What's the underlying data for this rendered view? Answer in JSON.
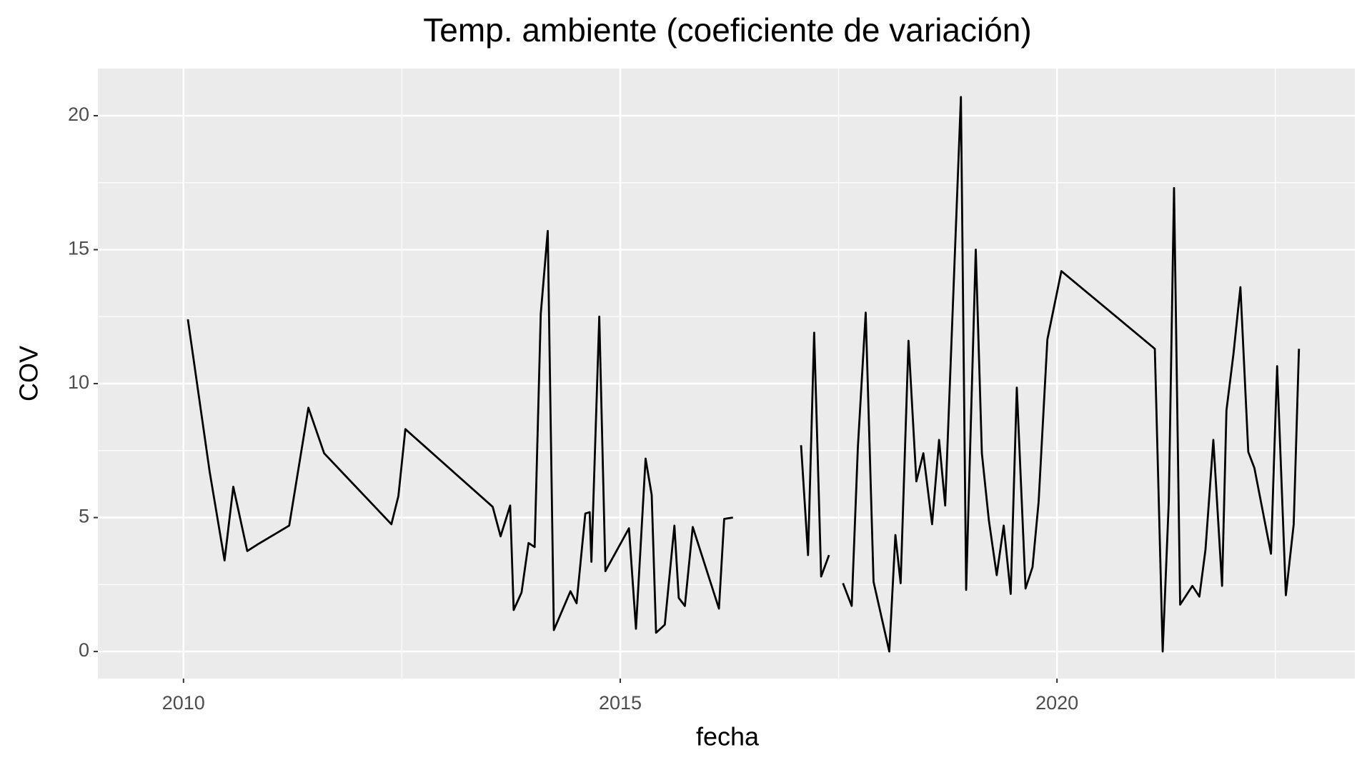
{
  "chart_data": {
    "type": "line",
    "title": "Temp. ambiente (coeficiente de variación)",
    "x_label": "fecha",
    "y_label": "COV",
    "color": "#000000",
    "grid": true,
    "xlim": [
      2009.02,
      2023.41
    ],
    "ylim": [
      -1.01,
      21.76
    ],
    "xticks": [
      2010,
      2015,
      2020
    ],
    "yticks": [
      0,
      5,
      10,
      15,
      20
    ],
    "xminor": [
      2012.5,
      2017.5,
      2022.5
    ],
    "yminor": [
      2.5,
      7.5,
      12.5,
      17.5
    ],
    "x": [
      2010.05,
      2010.3,
      2010.47,
      2010.57,
      2010.73,
      2010.85,
      2011.21,
      2011.43,
      2011.61,
      2012.38,
      2012.46,
      2012.54,
      2013.54,
      2013.63,
      2013.74,
      2013.78,
      2013.87,
      2013.95,
      2014.02,
      2014.09,
      2014.17,
      2014.24,
      2014.43,
      2014.5,
      2014.6,
      2014.65,
      2014.67,
      2014.76,
      2014.83,
      2015.1,
      2015.18,
      2015.29,
      2015.36,
      2015.41,
      2015.51,
      2015.62,
      2015.67,
      2015.74,
      2015.83,
      2016.13,
      2016.19,
      2016.29,
      2016.68,
      2017.07,
      2017.15,
      2017.22,
      2017.3,
      2017.39,
      2017.47,
      2017.55,
      2017.65,
      2017.72,
      2017.81,
      2017.9,
      2018.08,
      2018.15,
      2018.21,
      2018.3,
      2018.39,
      2018.47,
      2018.57,
      2018.65,
      2018.72,
      2018.9,
      2018.96,
      2019.07,
      2019.14,
      2019.22,
      2019.31,
      2019.39,
      2019.47,
      2019.54,
      2019.64,
      2019.72,
      2019.79,
      2019.89,
      2020.05,
      2021.12,
      2021.21,
      2021.28,
      2021.34,
      2021.41,
      2021.55,
      2021.63,
      2021.7,
      2021.79,
      2021.89,
      2021.94,
      2022.02,
      2022.1,
      2022.19,
      2022.26,
      2022.45,
      2022.52,
      2022.62,
      2022.71,
      2022.77
    ],
    "values": [
      12.4,
      6.7,
      3.4,
      6.15,
      3.75,
      4.0,
      4.7,
      9.1,
      7.4,
      4.75,
      5.8,
      8.3,
      5.4,
      4.3,
      5.45,
      1.55,
      2.2,
      4.05,
      3.9,
      12.6,
      15.7,
      0.8,
      2.25,
      1.8,
      5.15,
      5.2,
      3.35,
      12.5,
      3.0,
      4.6,
      0.85,
      7.2,
      5.85,
      0.7,
      1.0,
      4.7,
      2.0,
      1.7,
      4.65,
      1.6,
      4.95,
      5.0,
      null,
      7.7,
      3.6,
      11.9,
      2.8,
      3.6,
      null,
      2.55,
      1.7,
      7.6,
      12.65,
      2.6,
      0.0,
      4.35,
      2.55,
      11.6,
      6.35,
      7.4,
      4.75,
      7.9,
      5.45,
      20.7,
      2.3,
      15.0,
      7.4,
      4.9,
      2.85,
      4.7,
      2.15,
      9.85,
      2.35,
      3.15,
      5.6,
      11.65,
      14.2,
      11.3,
      0.0,
      5.6,
      17.3,
      1.75,
      2.45,
      2.05,
      3.8,
      7.9,
      2.45,
      9.0,
      11.1,
      13.6,
      7.45,
      6.85,
      3.65,
      10.65,
      2.1,
      4.75,
      11.3
    ]
  }
}
